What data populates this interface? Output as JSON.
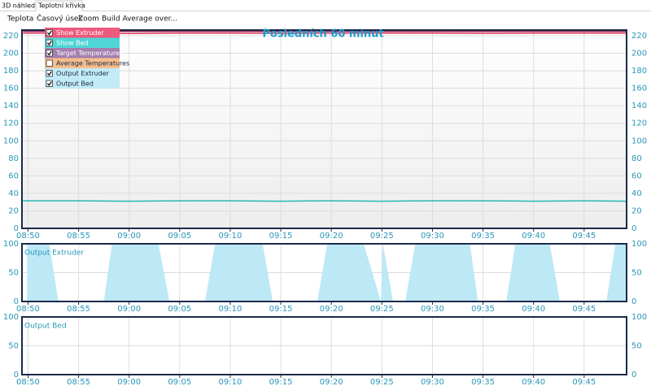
{
  "tabs": [
    "3D náhled",
    "Teplotní křivka"
  ],
  "active_tab": 1,
  "menu": [
    "Teplota",
    "Časový úsek",
    "Zoom",
    "Build Average over..."
  ],
  "legend": [
    {
      "label": "Show Extruder",
      "checked": true,
      "color": "#ee5a7e"
    },
    {
      "label": "Show Bed",
      "checked": true,
      "color": "#4fd6d6"
    },
    {
      "label": "Target Temperatures",
      "checked": true,
      "color": "#a47fae"
    },
    {
      "label": "Average Temperatures",
      "checked": false,
      "color": "#f6bd8e"
    },
    {
      "label": "Output Extruder",
      "checked": true,
      "color": "#c2ebf7"
    },
    {
      "label": "Output Bed",
      "checked": true,
      "color": "#c2ebf7"
    }
  ],
  "chart_data": [
    {
      "type": "line",
      "title": "Posledních 60 minut",
      "grid": true,
      "x": [
        529.5,
        535,
        540,
        545,
        550,
        555,
        560,
        565,
        570,
        575,
        580,
        585,
        589.2
      ],
      "series": [
        {
          "color": "#8c2150",
          "values": [
            225,
            225,
            225,
            225,
            225,
            225,
            225,
            225,
            225,
            225,
            225,
            225,
            225
          ]
        },
        {
          "color": "#e0355a",
          "values": [
            223,
            223,
            222.6,
            223,
            223,
            222.8,
            223,
            223,
            223,
            222.8,
            223,
            223,
            223
          ]
        },
        {
          "color": "#27b8b8",
          "values": [
            31.5,
            31.5,
            31,
            31.5,
            31.5,
            31,
            31.5,
            31,
            31.5,
            31.5,
            31,
            31.5,
            31
          ]
        }
      ],
      "xlim": [
        529.4,
        589.2
      ],
      "xticks": [
        {
          "value": 530,
          "label": "08:50"
        },
        {
          "value": 535,
          "label": "08:55"
        },
        {
          "value": 540,
          "label": "09:00"
        },
        {
          "value": 545,
          "label": "09:05"
        },
        {
          "value": 550,
          "label": "09:10"
        },
        {
          "value": 555,
          "label": "09:15"
        },
        {
          "value": 560,
          "label": "09:20"
        },
        {
          "value": 565,
          "label": "09:25"
        },
        {
          "value": 570,
          "label": "09:30"
        },
        {
          "value": 575,
          "label": "09:35"
        },
        {
          "value": 580,
          "label": "09:40"
        },
        {
          "value": 585,
          "label": "09:45"
        }
      ],
      "ylim": [
        0,
        226.5
      ],
      "yticks": [
        0,
        20,
        40,
        60,
        80,
        100,
        120,
        140,
        160,
        180,
        200,
        220
      ]
    },
    {
      "type": "area",
      "title": "Output Extruder",
      "grid": true,
      "x": [
        529.9,
        532.1,
        533.0,
        537.5,
        538.3,
        542.9,
        544.0,
        547.5,
        548.5,
        553.2,
        554.2,
        558.6,
        559.6,
        563.2,
        564.9,
        565.1,
        566.1,
        567.3,
        568.3,
        573.7,
        574.5,
        577.3,
        578.2,
        581.6,
        582.6,
        587.2,
        588.1,
        589.2
      ],
      "series": [
        {
          "color": "#bde8f6",
          "values": [
            100,
            100,
            0,
            0,
            100,
            100,
            0,
            0,
            100,
            100,
            0,
            0,
            100,
            100,
            0,
            100,
            0,
            0,
            100,
            100,
            0,
            0,
            100,
            100,
            0,
            0,
            100,
            100
          ]
        }
      ],
      "xlim": [
        529.4,
        589.2
      ],
      "xticks": [
        {
          "value": 530,
          "label": "08:50"
        },
        {
          "value": 535,
          "label": "08:55"
        },
        {
          "value": 540,
          "label": "09:00"
        },
        {
          "value": 545,
          "label": "09:05"
        },
        {
          "value": 550,
          "label": "09:10"
        },
        {
          "value": 555,
          "label": "09:15"
        },
        {
          "value": 560,
          "label": "09:20"
        },
        {
          "value": 565,
          "label": "09:25"
        },
        {
          "value": 570,
          "label": "09:30"
        },
        {
          "value": 575,
          "label": "09:35"
        },
        {
          "value": 580,
          "label": "09:40"
        },
        {
          "value": 585,
          "label": "09:45"
        }
      ],
      "ylim": [
        0,
        100
      ],
      "yticks": [
        0,
        50,
        100
      ]
    },
    {
      "type": "area",
      "title": "Output Bed",
      "grid": true,
      "x": [],
      "series": [],
      "xlim": [
        529.4,
        589.2
      ],
      "xticks": [
        {
          "value": 530,
          "label": "08:50"
        },
        {
          "value": 535,
          "label": "08:55"
        },
        {
          "value": 540,
          "label": "09:00"
        },
        {
          "value": 545,
          "label": "09:05"
        },
        {
          "value": 550,
          "label": "09:10"
        },
        {
          "value": 555,
          "label": "09:15"
        },
        {
          "value": 560,
          "label": "09:20"
        },
        {
          "value": 565,
          "label": "09:25"
        },
        {
          "value": 570,
          "label": "09:30"
        },
        {
          "value": 575,
          "label": "09:35"
        },
        {
          "value": 580,
          "label": "09:40"
        },
        {
          "value": 585,
          "label": "09:45"
        }
      ],
      "ylim": [
        0,
        100
      ],
      "yticks": [
        0,
        50,
        100
      ]
    }
  ]
}
